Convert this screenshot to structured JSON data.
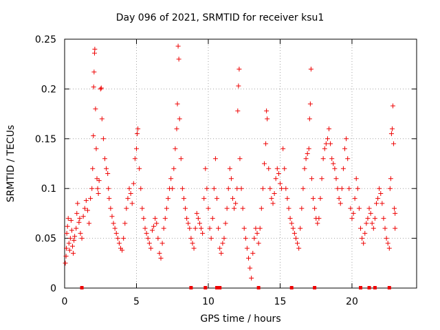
{
  "chart_data": {
    "type": "scatter",
    "title": "Day 096 of 2021, SRMTID for receiver ksu1",
    "xlabel": "GPS time / hours",
    "ylabel": "SRMTID / TECUs",
    "xlim": [
      0,
      24.5
    ],
    "ylim": [
      0,
      0.25
    ],
    "xticks": [
      0,
      5,
      10,
      15,
      20
    ],
    "yticks": [
      0,
      0.05,
      0.1,
      0.15,
      0.2,
      0.25
    ],
    "ytick_labels": [
      "0",
      "0.05",
      "0.1",
      "0.15",
      "0.2",
      "0.25"
    ],
    "grid": true,
    "marker": "plus",
    "color": "#ee0000",
    "series": [
      {
        "name": "SRMTID",
        "points": [
          [
            0.05,
            0.025
          ],
          [
            0.1,
            0.032
          ],
          [
            0.12,
            0.04
          ],
          [
            0.15,
            0.055
          ],
          [
            0.2,
            0.062
          ],
          [
            0.25,
            0.07
          ],
          [
            0.3,
            0.045
          ],
          [
            0.35,
            0.038
          ],
          [
            0.4,
            0.05
          ],
          [
            0.45,
            0.068
          ],
          [
            0.5,
            0.058
          ],
          [
            0.55,
            0.042
          ],
          [
            0.6,
            0.035
          ],
          [
            0.65,
            0.048
          ],
          [
            0.7,
            0.052
          ],
          [
            0.8,
            0.06
          ],
          [
            0.85,
            0.075
          ],
          [
            0.9,
            0.085
          ],
          [
            1.0,
            0.066
          ],
          [
            1.05,
            0.07
          ],
          [
            1.1,
            0.055
          ],
          [
            1.2,
            0.05
          ],
          [
            1.3,
            0.072
          ],
          [
            1.4,
            0.08
          ],
          [
            1.5,
            0.088
          ],
          [
            1.6,
            0.078
          ],
          [
            1.7,
            0.065
          ],
          [
            1.8,
            0.09
          ],
          [
            1.9,
            0.1
          ],
          [
            1.95,
            0.12
          ],
          [
            2.0,
            0.153
          ],
          [
            2.02,
            0.202
          ],
          [
            2.05,
            0.217
          ],
          [
            2.08,
            0.236
          ],
          [
            2.1,
            0.24
          ],
          [
            2.15,
            0.18
          ],
          [
            2.2,
            0.14
          ],
          [
            2.25,
            0.11
          ],
          [
            2.3,
            0.1
          ],
          [
            2.35,
            0.095
          ],
          [
            2.4,
            0.108
          ],
          [
            2.5,
            0.2
          ],
          [
            2.55,
            0.201
          ],
          [
            2.6,
            0.17
          ],
          [
            2.7,
            0.15
          ],
          [
            2.8,
            0.13
          ],
          [
            2.9,
            0.12
          ],
          [
            3.0,
            0.115
          ],
          [
            3.05,
            0.1
          ],
          [
            3.1,
            0.09
          ],
          [
            3.2,
            0.08
          ],
          [
            3.3,
            0.072
          ],
          [
            3.4,
            0.065
          ],
          [
            3.5,
            0.06
          ],
          [
            3.6,
            0.055
          ],
          [
            3.7,
            0.05
          ],
          [
            3.8,
            0.045
          ],
          [
            3.9,
            0.04
          ],
          [
            4.0,
            0.038
          ],
          [
            4.1,
            0.05
          ],
          [
            4.2,
            0.065
          ],
          [
            4.3,
            0.08
          ],
          [
            4.4,
            0.09
          ],
          [
            4.5,
            0.1
          ],
          [
            4.6,
            0.095
          ],
          [
            4.7,
            0.085
          ],
          [
            4.8,
            0.105
          ],
          [
            4.9,
            0.13
          ],
          [
            5.0,
            0.14
          ],
          [
            5.05,
            0.155
          ],
          [
            5.1,
            0.16
          ],
          [
            5.2,
            0.12
          ],
          [
            5.3,
            0.1
          ],
          [
            5.4,
            0.08
          ],
          [
            5.5,
            0.07
          ],
          [
            5.6,
            0.06
          ],
          [
            5.7,
            0.055
          ],
          [
            5.8,
            0.05
          ],
          [
            5.9,
            0.045
          ],
          [
            6.0,
            0.04
          ],
          [
            6.1,
            0.058
          ],
          [
            6.2,
            0.062
          ],
          [
            6.3,
            0.07
          ],
          [
            6.4,
            0.065
          ],
          [
            6.5,
            0.05
          ],
          [
            6.6,
            0.035
          ],
          [
            6.7,
            0.03
          ],
          [
            6.8,
            0.045
          ],
          [
            6.9,
            0.06
          ],
          [
            7.0,
            0.07
          ],
          [
            7.1,
            0.08
          ],
          [
            7.2,
            0.09
          ],
          [
            7.3,
            0.1
          ],
          [
            7.4,
            0.11
          ],
          [
            7.5,
            0.1
          ],
          [
            7.6,
            0.12
          ],
          [
            7.7,
            0.14
          ],
          [
            7.8,
            0.16
          ],
          [
            7.85,
            0.185
          ],
          [
            7.9,
            0.243
          ],
          [
            7.95,
            0.23
          ],
          [
            8.0,
            0.17
          ],
          [
            8.1,
            0.13
          ],
          [
            8.2,
            0.1
          ],
          [
            8.3,
            0.09
          ],
          [
            8.4,
            0.08
          ],
          [
            8.5,
            0.07
          ],
          [
            8.6,
            0.065
          ],
          [
            8.7,
            0.06
          ],
          [
            8.8,
            0.05
          ],
          [
            8.9,
            0.045
          ],
          [
            9.0,
            0.04
          ],
          [
            9.1,
            0.06
          ],
          [
            9.2,
            0.075
          ],
          [
            9.3,
            0.07
          ],
          [
            9.4,
            0.065
          ],
          [
            9.5,
            0.06
          ],
          [
            9.6,
            0.055
          ],
          [
            9.7,
            0.09
          ],
          [
            9.8,
            0.12
          ],
          [
            9.9,
            0.1
          ],
          [
            10.0,
            0.08
          ],
          [
            10.1,
            0.06
          ],
          [
            10.2,
            0.05
          ],
          [
            10.3,
            0.07
          ],
          [
            10.4,
            0.1
          ],
          [
            10.5,
            0.13
          ],
          [
            10.6,
            0.09
          ],
          [
            10.7,
            0.06
          ],
          [
            10.8,
            0.04
          ],
          [
            10.9,
            0.035
          ],
          [
            11.0,
            0.045
          ],
          [
            11.1,
            0.05
          ],
          [
            11.2,
            0.065
          ],
          [
            11.3,
            0.08
          ],
          [
            11.4,
            0.1
          ],
          [
            11.5,
            0.12
          ],
          [
            11.6,
            0.11
          ],
          [
            11.7,
            0.09
          ],
          [
            11.8,
            0.08
          ],
          [
            11.9,
            0.085
          ],
          [
            12.0,
            0.1
          ],
          [
            12.05,
            0.178
          ],
          [
            12.1,
            0.203
          ],
          [
            12.15,
            0.22
          ],
          [
            12.2,
            0.13
          ],
          [
            12.3,
            0.1
          ],
          [
            12.4,
            0.08
          ],
          [
            12.5,
            0.06
          ],
          [
            12.6,
            0.05
          ],
          [
            12.7,
            0.04
          ],
          [
            12.8,
            0.03
          ],
          [
            12.9,
            0.02
          ],
          [
            13.0,
            0.01
          ],
          [
            13.1,
            0.035
          ],
          [
            13.2,
            0.05
          ],
          [
            13.3,
            0.06
          ],
          [
            13.4,
            0.055
          ],
          [
            13.5,
            0.045
          ],
          [
            13.6,
            0.06
          ],
          [
            13.7,
            0.08
          ],
          [
            13.8,
            0.1
          ],
          [
            13.9,
            0.125
          ],
          [
            14.0,
            0.145
          ],
          [
            14.05,
            0.178
          ],
          [
            14.1,
            0.17
          ],
          [
            14.2,
            0.12
          ],
          [
            14.3,
            0.1
          ],
          [
            14.4,
            0.09
          ],
          [
            14.5,
            0.085
          ],
          [
            14.6,
            0.095
          ],
          [
            14.7,
            0.11
          ],
          [
            14.8,
            0.12
          ],
          [
            14.9,
            0.115
          ],
          [
            15.0,
            0.105
          ],
          [
            15.1,
            0.1
          ],
          [
            15.2,
            0.14
          ],
          [
            15.3,
            0.12
          ],
          [
            15.4,
            0.1
          ],
          [
            15.5,
            0.09
          ],
          [
            15.6,
            0.08
          ],
          [
            15.7,
            0.07
          ],
          [
            15.8,
            0.065
          ],
          [
            15.9,
            0.06
          ],
          [
            16.0,
            0.055
          ],
          [
            16.1,
            0.05
          ],
          [
            16.2,
            0.045
          ],
          [
            16.3,
            0.04
          ],
          [
            16.4,
            0.06
          ],
          [
            16.5,
            0.08
          ],
          [
            16.6,
            0.1
          ],
          [
            16.7,
            0.12
          ],
          [
            16.8,
            0.13
          ],
          [
            16.9,
            0.135
          ],
          [
            17.0,
            0.14
          ],
          [
            17.05,
            0.17
          ],
          [
            17.1,
            0.185
          ],
          [
            17.15,
            0.22
          ],
          [
            17.2,
            0.11
          ],
          [
            17.3,
            0.09
          ],
          [
            17.4,
            0.08
          ],
          [
            17.5,
            0.07
          ],
          [
            17.6,
            0.065
          ],
          [
            17.7,
            0.07
          ],
          [
            17.8,
            0.09
          ],
          [
            17.9,
            0.11
          ],
          [
            18.0,
            0.13
          ],
          [
            18.1,
            0.14
          ],
          [
            18.2,
            0.145
          ],
          [
            18.3,
            0.15
          ],
          [
            18.4,
            0.16
          ],
          [
            18.5,
            0.145
          ],
          [
            18.6,
            0.13
          ],
          [
            18.7,
            0.125
          ],
          [
            18.8,
            0.12
          ],
          [
            18.9,
            0.11
          ],
          [
            19.0,
            0.1
          ],
          [
            19.1,
            0.09
          ],
          [
            19.2,
            0.085
          ],
          [
            19.3,
            0.1
          ],
          [
            19.4,
            0.12
          ],
          [
            19.5,
            0.14
          ],
          [
            19.6,
            0.15
          ],
          [
            19.7,
            0.13
          ],
          [
            19.8,
            0.1
          ],
          [
            19.9,
            0.08
          ],
          [
            20.0,
            0.07
          ],
          [
            20.1,
            0.075
          ],
          [
            20.2,
            0.09
          ],
          [
            20.3,
            0.11
          ],
          [
            20.4,
            0.1
          ],
          [
            20.5,
            0.08
          ],
          [
            20.6,
            0.06
          ],
          [
            20.7,
            0.05
          ],
          [
            20.8,
            0.045
          ],
          [
            20.9,
            0.055
          ],
          [
            21.0,
            0.065
          ],
          [
            21.1,
            0.07
          ],
          [
            21.2,
            0.08
          ],
          [
            21.3,
            0.075
          ],
          [
            21.4,
            0.065
          ],
          [
            21.5,
            0.06
          ],
          [
            21.6,
            0.07
          ],
          [
            21.7,
            0.085
          ],
          [
            21.8,
            0.09
          ],
          [
            21.9,
            0.1
          ],
          [
            22.0,
            0.095
          ],
          [
            22.1,
            0.085
          ],
          [
            22.2,
            0.07
          ],
          [
            22.3,
            0.06
          ],
          [
            22.4,
            0.05
          ],
          [
            22.5,
            0.045
          ],
          [
            22.6,
            0.04
          ],
          [
            22.65,
            0.1
          ],
          [
            22.7,
            0.11
          ],
          [
            22.75,
            0.155
          ],
          [
            22.8,
            0.16
          ],
          [
            22.85,
            0.183
          ],
          [
            22.9,
            0.145
          ],
          [
            22.95,
            0.08
          ],
          [
            23.0,
            0.075
          ],
          [
            23.0,
            0.06
          ]
        ]
      }
    ],
    "gap_markers_x": [
      1.2,
      8.8,
      9.8,
      10.6,
      10.8,
      13.5,
      15.8,
      17.4,
      20.6,
      21.2,
      21.6,
      22.6
    ]
  }
}
